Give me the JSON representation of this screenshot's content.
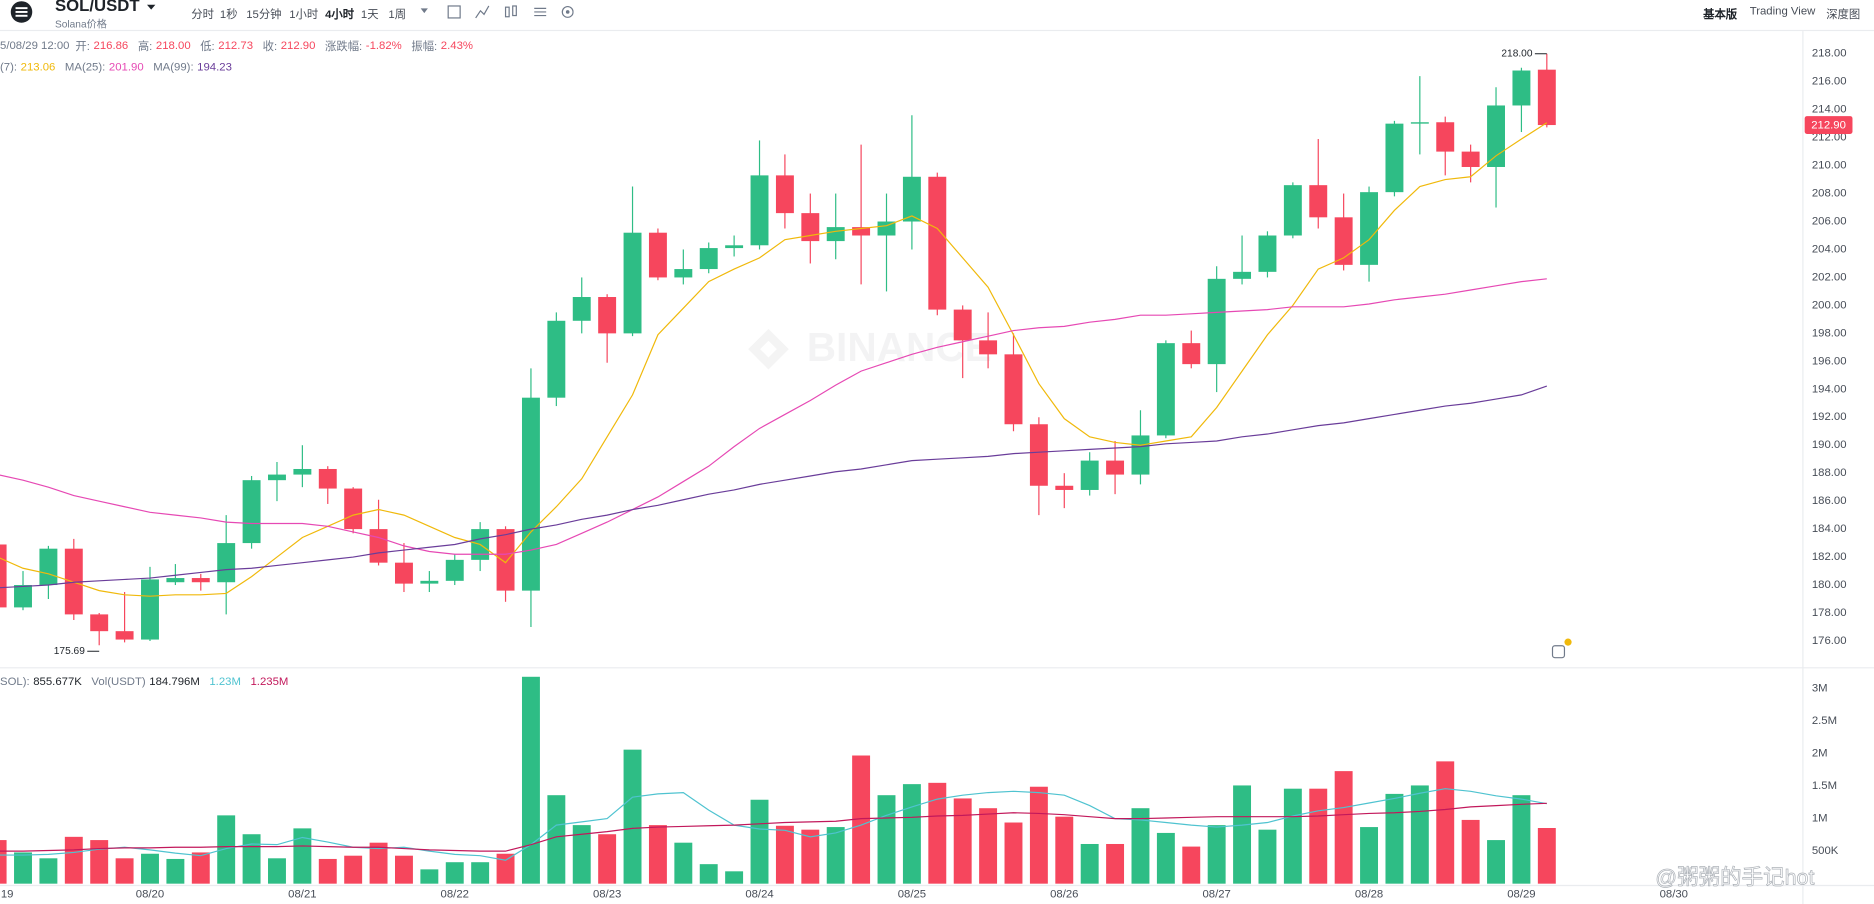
{
  "header": {
    "symbol": "SOL/USDT",
    "subtitle": "Solana价格",
    "intervals": [
      "分时",
      "1秒",
      "15分钟",
      "1小时",
      "4小时",
      "1天",
      "1周"
    ],
    "active_interval": "4小时",
    "views": [
      "基本版",
      "Trading View",
      "深度图"
    ],
    "active_view": "基本版"
  },
  "info": {
    "time": "5/08/29 12:00",
    "fields": [
      {
        "label": "开:",
        "value": "216.86"
      },
      {
        "label": "高:",
        "value": "218.00"
      },
      {
        "label": "低:",
        "value": "212.73"
      },
      {
        "label": "收:",
        "value": "212.90"
      },
      {
        "label": "涨跌幅:",
        "value": "-1.82%"
      },
      {
        "label": "振幅:",
        "value": "2.43%"
      }
    ]
  },
  "watermark": "BINANCE",
  "credit": "@粥粥的手记hot",
  "chart_data": [
    {
      "type": "candlestick",
      "up_color": "#2ebd85",
      "down_color": "#f6465d",
      "open": [
        182.9,
        178.4,
        180.0,
        182.6,
        177.9,
        176.7,
        176.1,
        180.2,
        180.5,
        180.2,
        183.0,
        187.5,
        187.9,
        188.3,
        186.9,
        184.0,
        181.6,
        180.1,
        180.3,
        181.8,
        184.0,
        179.6,
        193.4,
        198.9,
        200.6,
        198.0,
        205.2,
        202.0,
        202.6,
        204.1,
        204.3,
        209.3,
        206.6,
        204.6,
        205.6,
        205.0,
        206.0,
        209.2,
        199.7,
        197.5,
        196.5,
        191.5,
        187.1,
        186.8,
        188.9,
        187.9,
        190.7,
        197.3,
        195.8,
        201.9,
        202.4,
        205.0,
        208.6,
        206.3,
        202.9,
        208.1,
        213.0,
        213.1,
        211.0,
        209.9,
        214.3,
        216.86
      ],
      "high": [
        183.3,
        181.0,
        182.8,
        183.3,
        178.0,
        179.5,
        181.3,
        181.5,
        180.8,
        185.0,
        187.8,
        188.8,
        190.0,
        188.5,
        187.0,
        186.1,
        183.0,
        181.0,
        182.2,
        184.5,
        184.2,
        195.5,
        199.5,
        202.0,
        200.8,
        208.5,
        205.5,
        204.0,
        204.5,
        205.0,
        211.8,
        210.8,
        208.0,
        208.0,
        211.5,
        208.0,
        213.6,
        209.5,
        200.0,
        199.5,
        198.0,
        192.0,
        188.0,
        189.5,
        190.3,
        192.5,
        197.5,
        198.2,
        202.8,
        205.0,
        205.3,
        208.8,
        211.9,
        208.0,
        208.5,
        213.2,
        216.4,
        213.5,
        211.5,
        215.6,
        217.0,
        218.0
      ],
      "low": [
        177.8,
        178.2,
        179.0,
        177.5,
        175.69,
        175.9,
        176.0,
        180.0,
        179.6,
        177.9,
        182.6,
        186.0,
        187.0,
        185.8,
        183.7,
        181.4,
        179.5,
        179.5,
        180.0,
        181.0,
        178.8,
        177.0,
        192.8,
        198.0,
        195.9,
        197.8,
        201.8,
        201.5,
        202.3,
        203.5,
        204.0,
        205.5,
        203.0,
        203.3,
        201.5,
        201.0,
        204.0,
        199.3,
        194.8,
        195.5,
        191.0,
        185.0,
        185.5,
        186.4,
        186.5,
        187.2,
        190.5,
        195.5,
        193.8,
        201.5,
        202.0,
        204.8,
        205.5,
        202.5,
        201.7,
        207.8,
        210.8,
        209.3,
        208.8,
        207.0,
        212.4,
        212.73
      ],
      "close": [
        178.4,
        180.0,
        182.6,
        177.9,
        176.7,
        176.1,
        180.4,
        180.5,
        180.2,
        183.0,
        187.5,
        187.9,
        188.3,
        186.9,
        184.0,
        181.6,
        180.1,
        180.3,
        181.8,
        184.0,
        179.6,
        193.4,
        198.9,
        200.6,
        198.0,
        205.2,
        202.0,
        202.6,
        204.1,
        204.3,
        209.3,
        206.6,
        204.6,
        205.6,
        205.0,
        206.0,
        209.2,
        199.7,
        197.5,
        196.5,
        191.5,
        187.1,
        186.8,
        188.9,
        187.9,
        190.7,
        197.3,
        195.8,
        201.9,
        202.4,
        205.0,
        208.6,
        206.3,
        202.9,
        208.1,
        213.0,
        213.1,
        211.0,
        209.9,
        214.3,
        216.8,
        212.9
      ],
      "series": [
        {
          "name": "(7)",
          "color": "#f0b90b",
          "legend_value": "213.06",
          "values": [
            182.0,
            181.2,
            180.8,
            180.2,
            179.6,
            179.3,
            179.2,
            179.3,
            179.3,
            179.4,
            180.6,
            182.0,
            183.4,
            184.2,
            185.0,
            185.4,
            185.0,
            184.2,
            183.4,
            182.9,
            181.6,
            183.8,
            185.6,
            187.6,
            190.6,
            193.6,
            197.9,
            199.8,
            201.7,
            202.6,
            203.4,
            204.7,
            205.0,
            205.3,
            205.5,
            205.7,
            206.4,
            205.5,
            203.4,
            201.3,
            197.9,
            194.4,
            191.9,
            190.6,
            190.2,
            190.0,
            190.3,
            190.6,
            192.7,
            195.3,
            197.9,
            200.0,
            202.6,
            203.4,
            204.7,
            206.8,
            208.5,
            209.0,
            209.2,
            210.7,
            211.9,
            213.06
          ]
        },
        {
          "name": "MA(25)",
          "color": "#e649b4",
          "legend_value": "201.90",
          "values": [
            187.9,
            187.5,
            187.0,
            186.4,
            186.0,
            185.6,
            185.2,
            185.0,
            184.8,
            184.5,
            184.4,
            184.4,
            184.4,
            184.2,
            183.8,
            183.4,
            182.8,
            182.4,
            182.2,
            182.2,
            182.2,
            182.5,
            182.9,
            183.7,
            184.5,
            185.4,
            186.3,
            187.4,
            188.5,
            189.9,
            191.2,
            192.2,
            193.2,
            194.3,
            195.3,
            195.9,
            196.5,
            197.0,
            197.4,
            197.8,
            198.2,
            198.4,
            198.5,
            198.8,
            199.0,
            199.3,
            199.3,
            199.4,
            199.5,
            199.6,
            199.7,
            199.9,
            199.9,
            199.9,
            200.1,
            200.4,
            200.6,
            200.8,
            201.1,
            201.4,
            201.7,
            201.9
          ]
        },
        {
          "name": "MA(99)",
          "color": "#6a3d9a",
          "legend_value": "194.23",
          "values": [
            179.8,
            179.9,
            180.0,
            180.2,
            180.3,
            180.4,
            180.5,
            180.7,
            180.9,
            181.1,
            181.2,
            181.4,
            181.6,
            181.8,
            182.0,
            182.3,
            182.5,
            182.7,
            182.9,
            183.3,
            183.6,
            184.0,
            184.3,
            184.7,
            185.0,
            185.4,
            185.7,
            186.1,
            186.5,
            186.8,
            187.2,
            187.5,
            187.8,
            188.1,
            188.3,
            188.6,
            188.9,
            189.0,
            189.1,
            189.2,
            189.4,
            189.5,
            189.6,
            189.7,
            189.8,
            189.9,
            190.1,
            190.2,
            190.3,
            190.6,
            190.8,
            191.1,
            191.4,
            191.6,
            191.9,
            192.2,
            192.5,
            192.8,
            193.0,
            193.3,
            193.6,
            194.23
          ]
        }
      ],
      "ylim": [
        174.12,
        219.62
      ],
      "yticks": [
        {
          "value": 176,
          "label": "176.00"
        },
        {
          "value": 178,
          "label": "178.00"
        },
        {
          "value": 180,
          "label": "180.00"
        },
        {
          "value": 182,
          "label": "182.00"
        },
        {
          "value": 184,
          "label": "184.00"
        },
        {
          "value": 186,
          "label": "186.00"
        },
        {
          "value": 188,
          "label": "188.00"
        },
        {
          "value": 190,
          "label": "190.00"
        },
        {
          "value": 192,
          "label": "192.00"
        },
        {
          "value": 194,
          "label": "194.00"
        },
        {
          "value": 196,
          "label": "196.00"
        },
        {
          "value": 198,
          "label": "198.00"
        },
        {
          "value": 200,
          "label": "200.00"
        },
        {
          "value": 202,
          "label": "202.00"
        },
        {
          "value": 204,
          "label": "204.00"
        },
        {
          "value": 206,
          "label": "206.00"
        },
        {
          "value": 208,
          "label": "208.00"
        },
        {
          "value": 210,
          "label": "210.00"
        },
        {
          "value": 212,
          "label": "212.00"
        },
        {
          "value": 214,
          "label": "214.00"
        },
        {
          "value": 216,
          "label": "216.00"
        },
        {
          "value": 218,
          "label": "218.00"
        }
      ],
      "grid": false,
      "last_price_label": "212.90",
      "high_label": "218.00",
      "low_label": "175.69"
    },
    {
      "type": "bar",
      "categories": [
        "19",
        null,
        null,
        null,
        null,
        null,
        "08/20",
        null,
        null,
        null,
        null,
        null,
        "08/21",
        null,
        null,
        null,
        null,
        null,
        "08/22",
        null,
        null,
        null,
        null,
        null,
        "08/23",
        null,
        null,
        null,
        null,
        null,
        "08/24",
        null,
        null,
        null,
        null,
        null,
        "08/25",
        null,
        null,
        null,
        null,
        null,
        "08/26",
        null,
        null,
        null,
        null,
        null,
        "08/27",
        null,
        null,
        null,
        null,
        null,
        "08/28",
        null,
        null,
        null,
        null,
        null,
        "08/29",
        null,
        null,
        null,
        null,
        null,
        "08/30"
      ],
      "values": [
        670000,
        480000,
        390000,
        720000,
        670000,
        390000,
        460000,
        380000,
        480000,
        1050000,
        760000,
        390000,
        850000,
        380000,
        430000,
        630000,
        430000,
        220000,
        330000,
        330000,
        460000,
        3180000,
        1360000,
        900000,
        760000,
        2060000,
        900000,
        630000,
        300000,
        190000,
        1290000,
        890000,
        830000,
        870000,
        1970000,
        1360000,
        1530000,
        1550000,
        1310000,
        1160000,
        940000,
        1490000,
        1030000,
        610000,
        610000,
        1160000,
        780000,
        570000,
        900000,
        1510000,
        830000,
        1460000,
        1460000,
        1730000,
        870000,
        1380000,
        1510000,
        1880000,
        980000,
        670000,
        1360000,
        855677,
        null,
        null,
        null,
        null,
        null
      ],
      "series": [
        {
          "color": "#4fc3d0",
          "legend_value": "1.23M",
          "values": [
            440000,
            440000,
            450000,
            480000,
            530000,
            560000,
            520000,
            470000,
            430000,
            540000,
            610000,
            600000,
            710000,
            640000,
            560000,
            540000,
            560000,
            500000,
            450000,
            430000,
            360000,
            600000,
            900000,
            950000,
            1000000,
            1330000,
            1380000,
            1400000,
            1130000,
            900000,
            840000,
            820000,
            720000,
            780000,
            900000,
            1050000,
            1180000,
            1300000,
            1360000,
            1400000,
            1420000,
            1400000,
            1360000,
            1200000,
            1000000,
            980000,
            940000,
            900000,
            870000,
            900000,
            940000,
            1040000,
            1120000,
            1170000,
            1240000,
            1310000,
            1390000,
            1460000,
            1420000,
            1350000,
            1300000,
            1230000,
            null,
            null,
            null,
            null,
            null
          ]
        },
        {
          "color": "#c2185b",
          "legend_value": "1.235M",
          "values": [
            500000,
            500000,
            510000,
            520000,
            540000,
            550000,
            550000,
            560000,
            560000,
            570000,
            570000,
            570000,
            580000,
            570000,
            560000,
            560000,
            540000,
            520000,
            510000,
            500000,
            500000,
            600000,
            720000,
            760000,
            800000,
            850000,
            870000,
            880000,
            890000,
            900000,
            920000,
            940000,
            950000,
            960000,
            1000000,
            1010000,
            1020000,
            1040000,
            1050000,
            1070000,
            1090000,
            1080000,
            1060000,
            1030000,
            1000000,
            1000000,
            1010000,
            1020000,
            1030000,
            1030000,
            1030000,
            1030000,
            1040000,
            1060000,
            1080000,
            1090000,
            1110000,
            1140000,
            1180000,
            1200000,
            1220000,
            1235000,
            null,
            null,
            null,
            null,
            null
          ]
        }
      ],
      "readouts": [
        {
          "label": "SOL):",
          "value": "855.677K"
        },
        {
          "label": "Vol(USDT)",
          "value": "184.796M"
        }
      ],
      "ylim": [
        0,
        3290000
      ],
      "yticks": [
        {
          "value": 500000,
          "label": "500K"
        },
        {
          "value": 1000000,
          "label": "1M"
        },
        {
          "value": 1500000,
          "label": "1.5M"
        },
        {
          "value": 2000000,
          "label": "2M"
        },
        {
          "value": 2500000,
          "label": "2.5M"
        },
        {
          "value": 3000000,
          "label": "3M"
        }
      ],
      "grid": false
    }
  ]
}
